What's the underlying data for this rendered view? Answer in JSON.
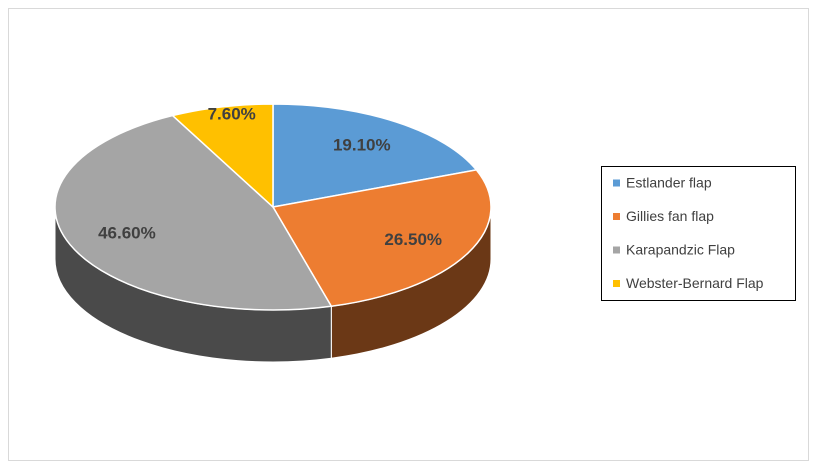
{
  "chart_data": {
    "type": "pie",
    "three_d": true,
    "categories": [
      "Estlander flap",
      "Gillies fan flap",
      "Karapandzic Flap",
      "Webster-Bernard Flap"
    ],
    "values": [
      19.1,
      26.5,
      46.6,
      7.6
    ],
    "value_labels": [
      "19.10%",
      "26.50%",
      "46.60%",
      "7.60%"
    ],
    "colors": [
      "#5b9bd5",
      "#ed7d31",
      "#a5a5a5",
      "#ffc000"
    ],
    "legend": "right"
  }
}
